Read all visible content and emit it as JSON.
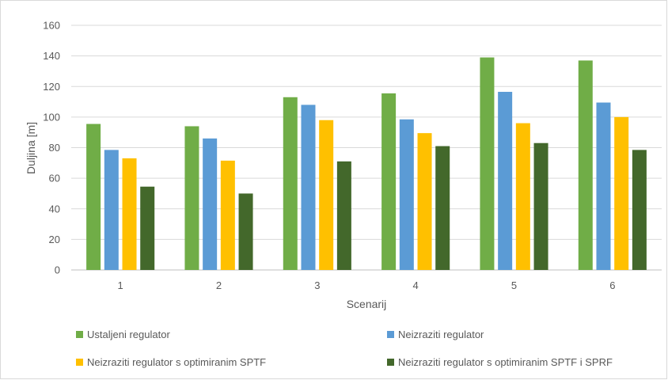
{
  "chart_data": {
    "type": "bar",
    "title": "",
    "xlabel": "Scenarij",
    "ylabel": "Duljina [m]",
    "ylim": [
      0,
      160
    ],
    "ytick_step": 20,
    "grid": true,
    "legend_position": "bottom",
    "categories": [
      "1",
      "2",
      "3",
      "4",
      "5",
      "6"
    ],
    "series": [
      {
        "name": "Ustaljeni regulator",
        "color": "#70ad47",
        "values": [
          95.5,
          94,
          113,
          115.5,
          139,
          137
        ]
      },
      {
        "name": "Neizraziti regulator",
        "color": "#5b9bd5",
        "values": [
          78.5,
          86,
          108,
          98.5,
          116.5,
          109.5
        ]
      },
      {
        "name": "Neizraziti regulator s optimiranim SPTF",
        "color": "#ffc000",
        "values": [
          73,
          71.5,
          98,
          89.5,
          96,
          100
        ]
      },
      {
        "name": "Neizraziti regulator s optimiranim SPTF i SPRF",
        "color": "#43682b",
        "values": [
          54.5,
          50,
          71,
          81,
          83,
          78.5
        ]
      }
    ]
  }
}
